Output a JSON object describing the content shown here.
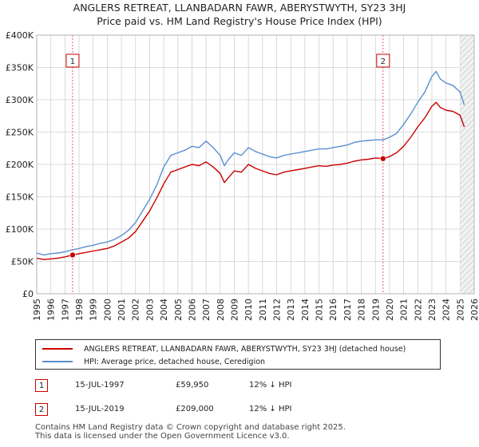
{
  "title_line1": "ANGLERS RETREAT, LLANBADARN FAWR, ABERYSTWYTH, SY23 3HJ",
  "title_line2": "Price paid vs. HM Land Registry's House Price Index (HPI)",
  "legend": {
    "price_paid": "ANGLERS RETREAT, LLANBADARN FAWR, ABERYSTWYTH, SY23 3HJ (detached house)",
    "hpi": "HPI: Average price, detached house, Ceredigion"
  },
  "sales": [
    {
      "num": "1",
      "date": "15-JUL-1997",
      "price": "£59,950",
      "hpi": "12% ↓ HPI"
    },
    {
      "num": "2",
      "date": "15-JUL-2019",
      "price": "£209,000",
      "hpi": "12% ↓ HPI"
    }
  ],
  "footer": {
    "line1": "Contains HM Land Registry data © Crown copyright and database right 2025.",
    "line2": "This data is licensed under the Open Government Licence v3.0."
  },
  "colors": {
    "price_paid": "#cc0000",
    "hpi": "#5b8fd1",
    "grid": "#d0d0d0",
    "plot_bg": "#ffffff",
    "marker_line": "#e06070"
  },
  "chart_data": {
    "type": "line",
    "title": "Price paid vs. HM Land Registry's House Price Index (HPI)",
    "xlim": [
      1995,
      2026
    ],
    "ylim": [
      0,
      400000
    ],
    "x_ticks": [
      1995,
      1996,
      1997,
      1998,
      1999,
      2000,
      2001,
      2002,
      2003,
      2004,
      2005,
      2006,
      2007,
      2008,
      2009,
      2010,
      2011,
      2012,
      2013,
      2014,
      2015,
      2016,
      2017,
      2018,
      2019,
      2020,
      2021,
      2022,
      2023,
      2024,
      2025,
      2026
    ],
    "y_ticks": [
      0,
      50000,
      100000,
      150000,
      200000,
      250000,
      300000,
      350000,
      400000
    ],
    "y_tick_labels": [
      "£0",
      "£50K",
      "£100K",
      "£150K",
      "£200K",
      "£250K",
      "£300K",
      "£350K",
      "£400K"
    ],
    "hatched_future_from": 2025.0,
    "series": [
      {
        "name": "ANGLERS RETREAT, LLANBADARN FAWR, ABERYSTWYTH, SY23 3HJ (detached house)",
        "color_key": "price_paid",
        "x": [
          1995.0,
          1995.5,
          1996.0,
          1996.5,
          1997.0,
          1997.54,
          1998.0,
          1998.5,
          1999.0,
          1999.5,
          2000.0,
          2000.5,
          2001.0,
          2001.5,
          2002.0,
          2002.5,
          2003.0,
          2003.5,
          2004.0,
          2004.5,
          2005.0,
          2005.5,
          2006.0,
          2006.5,
          2007.0,
          2007.5,
          2008.0,
          2008.3,
          2008.6,
          2009.0,
          2009.5,
          2010.0,
          2010.5,
          2011.0,
          2011.5,
          2012.0,
          2012.5,
          2013.0,
          2013.5,
          2014.0,
          2014.5,
          2015.0,
          2015.5,
          2016.0,
          2016.5,
          2017.0,
          2017.5,
          2018.0,
          2018.5,
          2019.0,
          2019.54,
          2020.0,
          2020.5,
          2021.0,
          2021.5,
          2022.0,
          2022.5,
          2023.0,
          2023.3,
          2023.6,
          2024.0,
          2024.5,
          2025.0,
          2025.3
        ],
        "y": [
          55000,
          53000,
          54000,
          55000,
          57000,
          59950,
          62000,
          64000,
          66000,
          68000,
          70000,
          74000,
          80000,
          86000,
          96000,
          112000,
          128000,
          148000,
          170000,
          188000,
          192000,
          196000,
          200000,
          198000,
          204000,
          196000,
          186000,
          172000,
          180000,
          190000,
          188000,
          200000,
          194000,
          190000,
          186000,
          184000,
          188000,
          190000,
          192000,
          194000,
          196000,
          198000,
          197000,
          199000,
          200000,
          202000,
          205000,
          207000,
          208000,
          210000,
          209000,
          212000,
          218000,
          228000,
          242000,
          258000,
          272000,
          290000,
          296000,
          288000,
          284000,
          282000,
          276000,
          258000
        ]
      },
      {
        "name": "HPI: Average price, detached house, Ceredigion",
        "color_key": "hpi",
        "x": [
          1995.0,
          1995.5,
          1996.0,
          1996.5,
          1997.0,
          1997.54,
          1998.0,
          1998.5,
          1999.0,
          1999.5,
          2000.0,
          2000.5,
          2001.0,
          2001.5,
          2002.0,
          2002.5,
          2003.0,
          2003.5,
          2004.0,
          2004.5,
          2005.0,
          2005.5,
          2006.0,
          2006.5,
          2007.0,
          2007.5,
          2008.0,
          2008.3,
          2008.6,
          2009.0,
          2009.5,
          2010.0,
          2010.5,
          2011.0,
          2011.5,
          2012.0,
          2012.5,
          2013.0,
          2013.5,
          2014.0,
          2014.5,
          2015.0,
          2015.5,
          2016.0,
          2016.5,
          2017.0,
          2017.5,
          2018.0,
          2018.5,
          2019.0,
          2019.54,
          2020.0,
          2020.5,
          2021.0,
          2021.5,
          2022.0,
          2022.5,
          2023.0,
          2023.3,
          2023.6,
          2024.0,
          2024.5,
          2025.0,
          2025.3
        ],
        "y": [
          63000,
          60000,
          62000,
          63000,
          65000,
          68000,
          70000,
          73000,
          75000,
          78000,
          80000,
          84000,
          90000,
          98000,
          110000,
          128000,
          146000,
          168000,
          196000,
          214000,
          218000,
          222000,
          228000,
          226000,
          236000,
          226000,
          214000,
          198000,
          208000,
          218000,
          214000,
          226000,
          220000,
          216000,
          212000,
          210000,
          214000,
          216000,
          218000,
          220000,
          222000,
          224000,
          224000,
          226000,
          228000,
          230000,
          234000,
          236000,
          237000,
          238000,
          238000,
          242000,
          248000,
          262000,
          278000,
          296000,
          312000,
          336000,
          344000,
          332000,
          326000,
          322000,
          312000,
          292000
        ]
      }
    ],
    "sale_markers": [
      {
        "label": "1",
        "x": 1997.54,
        "y": 59950
      },
      {
        "label": "2",
        "x": 2019.54,
        "y": 209000
      }
    ]
  }
}
